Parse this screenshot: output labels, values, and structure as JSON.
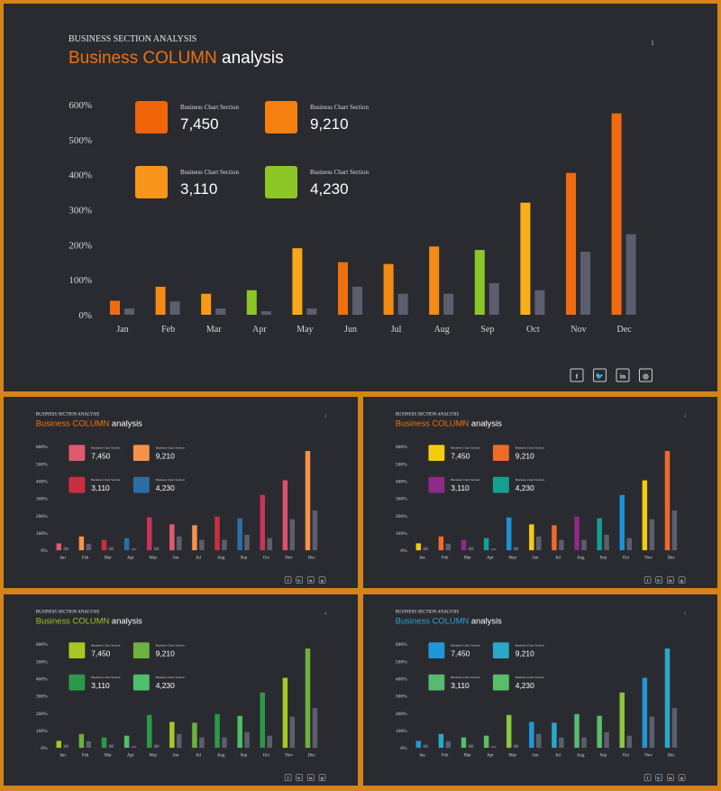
{
  "common": {
    "kicker": "BUSINESS SECTION ANALYSIS",
    "title_accent": "Business COLUMN",
    "title_rest": " analysis",
    "social": [
      {
        "icon": "facebook-icon",
        "glyph": "f"
      },
      {
        "icon": "twitter-icon",
        "glyph": "🐦"
      },
      {
        "icon": "linkedin-icon",
        "glyph": "in"
      },
      {
        "icon": "instagram-icon",
        "glyph": "◎"
      }
    ]
  },
  "slides": [
    {
      "page_number": "1",
      "accent": "#f07010",
      "legend": [
        {
          "label": "Business Chart Section",
          "value": "7,450",
          "color": "#f0640a"
        },
        {
          "label": "Business Chart Section",
          "value": "9,210",
          "color": "#f58010"
        },
        {
          "label": "Business Chart Section",
          "value": "3,110",
          "color": "#f7941a"
        },
        {
          "label": "Business Chart Section",
          "value": "4,230",
          "color": "#8cc625"
        }
      ],
      "bar_colors": [
        "#f06a12",
        "#f58a14",
        "#f79a18",
        "#8cc625",
        "#f7a81a",
        "#f0700e",
        "#f58a14",
        "#f58a14",
        "#8cc625",
        "#f7b01a",
        "#f06a10",
        "#f06a10"
      ]
    },
    {
      "page_number": "2",
      "accent": "#f07010",
      "legend": [
        {
          "label": "Business Chart Section",
          "value": "7,450",
          "color": "#e05a6e"
        },
        {
          "label": "Business Chart Section",
          "value": "9,210",
          "color": "#f5934a"
        },
        {
          "label": "Business Chart Section",
          "value": "3,110",
          "color": "#c9303f"
        },
        {
          "label": "Business Chart Section",
          "value": "4,230",
          "color": "#2a6fa5"
        }
      ],
      "bar_colors": [
        "#e05a6e",
        "#f5934a",
        "#c9303f",
        "#2a6fa5",
        "#c9345a",
        "#e05a6e",
        "#f5934a",
        "#c9303f",
        "#2a6fa5",
        "#c9345a",
        "#e0506e",
        "#f5934a"
      ]
    },
    {
      "page_number": "3",
      "accent": "#f07010",
      "legend": [
        {
          "label": "Business Chart Section",
          "value": "7,450",
          "color": "#f5cb12"
        },
        {
          "label": "Business Chart Section",
          "value": "9,210",
          "color": "#f06a2a"
        },
        {
          "label": "Business Chart Section",
          "value": "3,110",
          "color": "#8e2a8a"
        },
        {
          "label": "Business Chart Section",
          "value": "4,230",
          "color": "#14a090"
        }
      ],
      "bar_colors": [
        "#f5cb12",
        "#f06a2a",
        "#8e2a8a",
        "#14a090",
        "#1e90d5",
        "#f5cb12",
        "#f06a2a",
        "#8e2a8a",
        "#14a090",
        "#1e90d5",
        "#f5cb12",
        "#f06a2a"
      ]
    },
    {
      "page_number": "4",
      "accent": "#9cc424",
      "legend": [
        {
          "label": "Business Chart Section",
          "value": "7,450",
          "color": "#a7c824"
        },
        {
          "label": "Business Chart Section",
          "value": "9,210",
          "color": "#6db23c"
        },
        {
          "label": "Business Chart Section",
          "value": "3,110",
          "color": "#2a9a4a"
        },
        {
          "label": "Business Chart Section",
          "value": "4,230",
          "color": "#4fbf6a"
        }
      ],
      "bar_colors": [
        "#a7c824",
        "#6db23c",
        "#2a9a4a",
        "#4fbf6a",
        "#2a9a4a",
        "#a7c824",
        "#6db23c",
        "#2a9a4a",
        "#4fbf6a",
        "#2a9a4a",
        "#a7c824",
        "#6db23c"
      ]
    },
    {
      "page_number": "5",
      "accent": "#2aa0d8",
      "legend": [
        {
          "label": "Business Chart Section",
          "value": "7,450",
          "color": "#2196d8"
        },
        {
          "label": "Business Chart Section",
          "value": "9,210",
          "color": "#2aa8c8"
        },
        {
          "label": "Business Chart Section",
          "value": "3,110",
          "color": "#5ab870"
        },
        {
          "label": "Business Chart Section",
          "value": "4,230",
          "color": "#5abe68"
        }
      ],
      "bar_colors": [
        "#2196d8",
        "#2aa8c8",
        "#5ab870",
        "#5abe68",
        "#8cc63e",
        "#2196d8",
        "#2aa8c8",
        "#5ab870",
        "#5abe68",
        "#8cc63e",
        "#2196d8",
        "#2aa8c8"
      ]
    }
  ],
  "chart_data": {
    "type": "bar",
    "categories": [
      "Jan",
      "Feb",
      "Mar",
      "Apr",
      "May",
      "Jun",
      "Jul",
      "Aug",
      "Sep",
      "Oct",
      "Nov",
      "Dec"
    ],
    "y_tick_labels": [
      "0%",
      "100%",
      "200%",
      "300%",
      "400%",
      "500%",
      "600%"
    ],
    "ylim": [
      0,
      600
    ],
    "series": [
      {
        "values": [
          40,
          80,
          60,
          70,
          190,
          150,
          145,
          195,
          185,
          320,
          405,
          575
        ]
      },
      {
        "values": [
          18,
          38,
          18,
          10,
          18,
          80,
          60,
          60,
          90,
          70,
          180,
          230
        ]
      }
    ],
    "secondary_color": "#5c5e6e",
    "grid": false
  }
}
